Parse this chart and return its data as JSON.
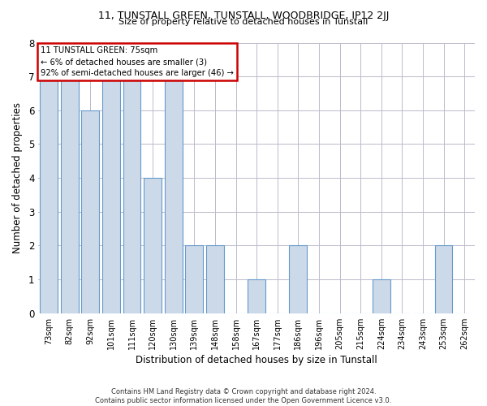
{
  "title1": "11, TUNSTALL GREEN, TUNSTALL, WOODBRIDGE, IP12 2JJ",
  "title2": "Size of property relative to detached houses in Tunstall",
  "xlabel": "Distribution of detached houses by size in Tunstall",
  "ylabel": "Number of detached properties",
  "categories": [
    "73sqm",
    "82sqm",
    "92sqm",
    "101sqm",
    "111sqm",
    "120sqm",
    "130sqm",
    "139sqm",
    "148sqm",
    "158sqm",
    "167sqm",
    "177sqm",
    "186sqm",
    "196sqm",
    "205sqm",
    "215sqm",
    "224sqm",
    "234sqm",
    "243sqm",
    "253sqm",
    "262sqm"
  ],
  "values": [
    7,
    7,
    6,
    7,
    7,
    4,
    7,
    2,
    2,
    0,
    1,
    0,
    2,
    0,
    0,
    0,
    1,
    0,
    0,
    2,
    0
  ],
  "bar_color": "#ccd9e8",
  "bar_edge_color": "#6699cc",
  "ylim": [
    0,
    8
  ],
  "yticks": [
    0,
    1,
    2,
    3,
    4,
    5,
    6,
    7,
    8
  ],
  "annotation_text": "11 TUNSTALL GREEN: 75sqm\n← 6% of detached houses are smaller (3)\n92% of semi-detached houses are larger (46) →",
  "annotation_box_color": "#cc0000",
  "footnote": "Contains HM Land Registry data © Crown copyright and database right 2024.\nContains public sector information licensed under the Open Government Licence v3.0.",
  "bg_color": "#ffffff",
  "grid_color": "#bbbbcc"
}
